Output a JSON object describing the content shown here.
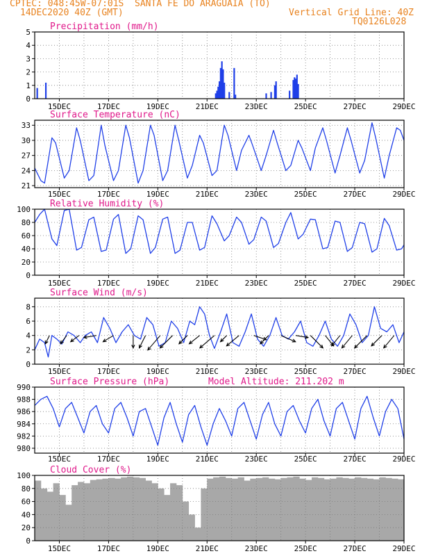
{
  "header": {
    "source": "CPTEC:",
    "coords": "048:45W-07:01S",
    "station": "SANTA FE DO ARAGUAIA (TO)",
    "init_time": "14DEC2020 40Z (GMT)",
    "grid_line": "Vertical Grid Line: 40Z",
    "model": "TQ0126L028"
  },
  "colors": {
    "header": "#e8821e",
    "panel_title": "#e0188a",
    "series": "#1f3fe8",
    "cloud": "#a8a8a8",
    "grid": "#7a7a7a",
    "axis": "#000000"
  },
  "chart_data": [
    {
      "id": "precip",
      "type": "bar",
      "title": "Precipitation (mm/h)",
      "ylim": [
        0,
        5
      ],
      "yticks": [
        0,
        1,
        2,
        3,
        4,
        5
      ],
      "x_dates": [
        "15DEC",
        "17DEC",
        "19DEC",
        "21DEC",
        "23DEC",
        "25DEC",
        "27DEC",
        "29DEC"
      ],
      "xlim_days": [
        14.0,
        29.0
      ],
      "series": [
        {
          "x": [
            14.1,
            14.45,
            21.35,
            21.4,
            21.45,
            21.5,
            21.55,
            21.6,
            21.65,
            21.7,
            21.9,
            22.1,
            22.15,
            23.4,
            23.6,
            23.75,
            23.8,
            24.35,
            24.5,
            24.55,
            24.6,
            24.65,
            24.7
          ],
          "values": [
            0.8,
            1.2,
            0.4,
            0.6,
            0.9,
            1.3,
            2.3,
            2.8,
            2.2,
            1.2,
            0.5,
            2.3,
            0.3,
            0.4,
            0.5,
            1.0,
            1.3,
            0.6,
            1.4,
            1.6,
            1.5,
            1.8,
            1.1
          ]
        }
      ]
    },
    {
      "id": "temp",
      "type": "line",
      "title": "Surface Temperature (nC)",
      "ylim": [
        20.6,
        34
      ],
      "yticks": [
        21,
        24,
        27,
        30,
        33
      ],
      "x_dates": [
        "15DEC",
        "17DEC",
        "19DEC",
        "21DEC",
        "23DEC",
        "25DEC",
        "27DEC",
        "29DEC"
      ],
      "xlim_days": [
        14.0,
        29.0
      ],
      "series": [
        {
          "x": [
            14.0,
            14.25,
            14.4,
            14.7,
            14.85,
            15.2,
            15.4,
            15.7,
            15.85,
            16.2,
            16.4,
            16.7,
            16.85,
            17.2,
            17.4,
            17.7,
            17.85,
            18.2,
            18.4,
            18.7,
            18.85,
            19.2,
            19.4,
            19.7,
            19.85,
            20.2,
            20.4,
            20.7,
            20.85,
            21.2,
            21.4,
            21.7,
            21.85,
            22.2,
            22.4,
            22.7,
            22.85,
            23.2,
            23.4,
            23.7,
            23.85,
            24.2,
            24.4,
            24.7,
            24.85,
            25.2,
            25.4,
            25.7,
            25.85,
            26.2,
            26.4,
            26.7,
            26.85,
            27.2,
            27.4,
            27.7,
            27.85,
            28.2,
            28.4,
            28.7,
            28.85,
            29.0
          ],
          "values": [
            24.5,
            22.0,
            21.5,
            30.5,
            29.5,
            22.5,
            24.0,
            32.5,
            30.0,
            22.0,
            23.0,
            33.0,
            29.0,
            22.0,
            24.0,
            33.0,
            30.5,
            21.5,
            24.0,
            33.0,
            31.0,
            22.0,
            24.0,
            33.0,
            30.0,
            22.5,
            25.0,
            31.0,
            29.5,
            23.0,
            24.0,
            33.0,
            31.0,
            24.0,
            28.0,
            31.0,
            29.0,
            24.0,
            27.0,
            32.0,
            29.5,
            24.0,
            25.0,
            30.0,
            28.5,
            24.0,
            28.5,
            32.5,
            30.0,
            23.5,
            27.0,
            32.5,
            30.0,
            23.5,
            26.0,
            33.5,
            30.5,
            22.5,
            27.0,
            32.5,
            32.0,
            30.0
          ]
        }
      ]
    },
    {
      "id": "rh",
      "type": "line",
      "title": "Relative Humidity (%)",
      "ylim": [
        0,
        100
      ],
      "yticks": [
        0,
        20,
        40,
        60,
        80,
        100
      ],
      "x_dates": [
        "15DEC",
        "17DEC",
        "19DEC",
        "21DEC",
        "23DEC",
        "25DEC",
        "27DEC",
        "29DEC"
      ],
      "xlim_days": [
        14.0,
        29.0
      ],
      "series": [
        {
          "x": [
            14.0,
            14.2,
            14.4,
            14.7,
            14.9,
            15.2,
            15.4,
            15.7,
            15.9,
            16.2,
            16.4,
            16.7,
            16.9,
            17.2,
            17.4,
            17.7,
            17.9,
            18.2,
            18.4,
            18.7,
            18.9,
            19.2,
            19.4,
            19.7,
            19.9,
            20.2,
            20.4,
            20.7,
            20.9,
            21.2,
            21.4,
            21.7,
            21.9,
            22.2,
            22.4,
            22.7,
            22.9,
            23.2,
            23.4,
            23.7,
            23.9,
            24.2,
            24.4,
            24.7,
            24.9,
            25.2,
            25.4,
            25.7,
            25.9,
            26.2,
            26.4,
            26.7,
            26.9,
            27.2,
            27.4,
            27.7,
            27.9,
            28.2,
            28.4,
            28.7,
            28.9,
            29.0
          ],
          "values": [
            80,
            92,
            100,
            55,
            45,
            98,
            100,
            38,
            42,
            84,
            88,
            36,
            38,
            85,
            92,
            33,
            40,
            90,
            84,
            33,
            42,
            85,
            88,
            33,
            38,
            80,
            80,
            38,
            42,
            90,
            78,
            52,
            60,
            88,
            80,
            47,
            54,
            88,
            82,
            42,
            48,
            80,
            95,
            55,
            62,
            85,
            84,
            40,
            42,
            82,
            80,
            36,
            42,
            80,
            78,
            35,
            40,
            86,
            75,
            38,
            40,
            46
          ]
        }
      ]
    },
    {
      "id": "wind",
      "type": "line",
      "title": "Surface Wind (m/s)",
      "ylim": [
        0,
        9.2
      ],
      "yticks": [
        0,
        2,
        4,
        6,
        8
      ],
      "x_dates": [
        "15DEC",
        "17DEC",
        "19DEC",
        "21DEC",
        "23DEC",
        "25DEC",
        "27DEC",
        "29DEC"
      ],
      "xlim_days": [
        14.0,
        29.0
      ],
      "series": [
        {
          "x": [
            14.0,
            14.2,
            14.4,
            14.55,
            14.7,
            14.9,
            15.1,
            15.35,
            15.6,
            15.85,
            16.05,
            16.3,
            16.55,
            16.8,
            17.05,
            17.3,
            17.55,
            17.8,
            18.05,
            18.3,
            18.55,
            18.8,
            19.05,
            19.3,
            19.55,
            19.8,
            20.05,
            20.3,
            20.5,
            20.7,
            20.9,
            21.1,
            21.3,
            21.55,
            21.8,
            22.05,
            22.3,
            22.55,
            22.8,
            23.05,
            23.3,
            23.55,
            23.8,
            24.05,
            24.3,
            24.55,
            24.8,
            25.05,
            25.3,
            25.55,
            25.8,
            26.05,
            26.3,
            26.55,
            26.8,
            27.05,
            27.3,
            27.55,
            27.8,
            28.05,
            28.3,
            28.55,
            28.8,
            29.0
          ],
          "values": [
            2.0,
            3.5,
            3.0,
            1.0,
            4.0,
            3.5,
            2.8,
            4.5,
            4.0,
            3.0,
            4.0,
            4.5,
            3.0,
            6.5,
            5.0,
            3.0,
            4.5,
            5.5,
            4.0,
            3.5,
            6.5,
            5.5,
            2.5,
            3.0,
            6.0,
            5.0,
            3.0,
            6.0,
            5.5,
            8.0,
            7.0,
            4.0,
            2.2,
            4.5,
            7.0,
            3.0,
            2.5,
            4.5,
            7.0,
            3.5,
            2.5,
            4.0,
            6.5,
            4.0,
            3.5,
            4.5,
            6.0,
            3.0,
            2.5,
            4.0,
            6.0,
            3.5,
            2.5,
            4.0,
            7.0,
            5.5,
            3.0,
            4.0,
            8.0,
            5.0,
            4.5,
            5.5,
            3.0,
            4.5
          ]
        }
      ],
      "vectors": {
        "x": [
          14.6,
          15.3,
          15.8,
          16.5,
          17.2,
          18.0,
          18.5,
          19.1,
          19.6,
          20.2,
          20.7,
          21.3,
          21.8,
          22.3,
          22.9,
          23.5,
          24.0,
          24.6,
          25.2,
          25.8,
          26.4,
          26.9,
          27.5,
          28.1,
          28.6
        ],
        "u": [
          -1.0,
          -1.5,
          -2.0,
          -3.0,
          -2.5,
          0.0,
          -1.5,
          -3.0,
          -3.0,
          -2.0,
          -2.5,
          -3.5,
          -1.5,
          -3.0,
          3.0,
          -2.0,
          3.5,
          3.0,
          3.0,
          2.0,
          -2.0,
          -2.5,
          -3.0,
          -2.5,
          -2.5
        ],
        "v": [
          -2.0,
          -2.0,
          -1.5,
          -0.5,
          -1.5,
          -3.0,
          -3.0,
          -3.5,
          -3.0,
          -2.0,
          -2.0,
          -3.0,
          -1.5,
          -2.5,
          -1.0,
          -2.0,
          -1.5,
          -0.5,
          -3.0,
          -2.5,
          -2.5,
          -3.0,
          -3.0,
          -2.5,
          -3.0
        ]
      }
    },
    {
      "id": "pressure",
      "type": "line",
      "title": "Surface Pressure (hPa)",
      "subtitle": "Model Altitude: 211.202 m",
      "ylim": [
        979.2,
        990
      ],
      "yticks": [
        980,
        982,
        984,
        986,
        988,
        990
      ],
      "x_dates": [
        "15DEC",
        "17DEC",
        "19DEC",
        "21DEC",
        "23DEC",
        "25DEC",
        "27DEC",
        "29DEC"
      ],
      "xlim_days": [
        14.0,
        29.0
      ],
      "series": [
        {
          "x": [
            14.0,
            14.25,
            14.5,
            14.75,
            15.0,
            15.25,
            15.5,
            15.75,
            16.0,
            16.25,
            16.5,
            16.75,
            17.0,
            17.25,
            17.5,
            17.75,
            18.0,
            18.25,
            18.5,
            18.75,
            19.0,
            19.25,
            19.5,
            19.75,
            20.0,
            20.25,
            20.5,
            20.75,
            21.0,
            21.25,
            21.5,
            21.75,
            22.0,
            22.25,
            22.5,
            22.75,
            23.0,
            23.25,
            23.5,
            23.75,
            24.0,
            24.25,
            24.5,
            24.75,
            25.0,
            25.25,
            25.5,
            25.75,
            26.0,
            26.25,
            26.5,
            26.75,
            27.0,
            27.25,
            27.5,
            27.75,
            28.0,
            28.25,
            28.5,
            28.75,
            29.0
          ],
          "values": [
            987.0,
            988.0,
            988.5,
            986.5,
            983.5,
            986.5,
            987.5,
            985.0,
            982.5,
            986.0,
            987.0,
            984.0,
            982.5,
            986.5,
            987.5,
            985.0,
            982.0,
            986.0,
            986.5,
            983.5,
            980.5,
            985.0,
            987.5,
            984.0,
            981.0,
            985.5,
            987.0,
            983.5,
            980.5,
            984.0,
            986.5,
            984.5,
            982.0,
            986.5,
            987.5,
            984.5,
            981.5,
            985.5,
            987.5,
            984.0,
            982.0,
            986.0,
            987.0,
            984.5,
            982.5,
            986.5,
            988.0,
            984.5,
            982.0,
            986.5,
            987.5,
            984.5,
            981.5,
            986.5,
            988.5,
            985.0,
            982.0,
            986.0,
            988.0,
            986.5,
            981.5
          ]
        }
      ]
    },
    {
      "id": "cloud",
      "type": "bar",
      "title": "Cloud Cover (%)",
      "ylim": [
        0,
        100
      ],
      "yticks": [
        0,
        20,
        40,
        60,
        80,
        100
      ],
      "x_dates": [
        "15DEC",
        "17DEC",
        "19DEC",
        "21DEC",
        "23DEC",
        "25DEC",
        "27DEC",
        "29DEC"
      ],
      "xlim_days": [
        14.0,
        29.0
      ],
      "series": [
        {
          "x": [
            14.0,
            14.25,
            14.5,
            14.75,
            15.0,
            15.25,
            15.5,
            15.75,
            16.0,
            16.25,
            16.5,
            16.75,
            17.0,
            17.25,
            17.5,
            17.75,
            18.0,
            18.25,
            18.5,
            18.75,
            19.0,
            19.25,
            19.5,
            19.75,
            20.0,
            20.25,
            20.5,
            20.75,
            21.0,
            21.25,
            21.5,
            21.75,
            22.0,
            22.25,
            22.5,
            22.75,
            23.0,
            23.25,
            23.5,
            23.75,
            24.0,
            24.25,
            24.5,
            24.75,
            25.0,
            25.25,
            25.5,
            25.75,
            26.0,
            26.25,
            26.5,
            26.75,
            27.0,
            27.25,
            27.5,
            27.75,
            28.0,
            28.25,
            28.5,
            28.75
          ],
          "values": [
            92,
            80,
            75,
            88,
            70,
            55,
            85,
            90,
            88,
            93,
            94,
            95,
            96,
            95,
            97,
            98,
            97,
            96,
            92,
            88,
            80,
            70,
            88,
            85,
            60,
            40,
            20,
            80,
            95,
            97,
            98,
            96,
            95,
            97,
            92,
            95,
            96,
            97,
            95,
            94,
            96,
            97,
            98,
            95,
            93,
            97,
            96,
            94,
            95,
            97,
            96,
            95,
            97,
            96,
            95,
            94,
            97,
            96,
            95,
            94
          ]
        }
      ]
    }
  ]
}
